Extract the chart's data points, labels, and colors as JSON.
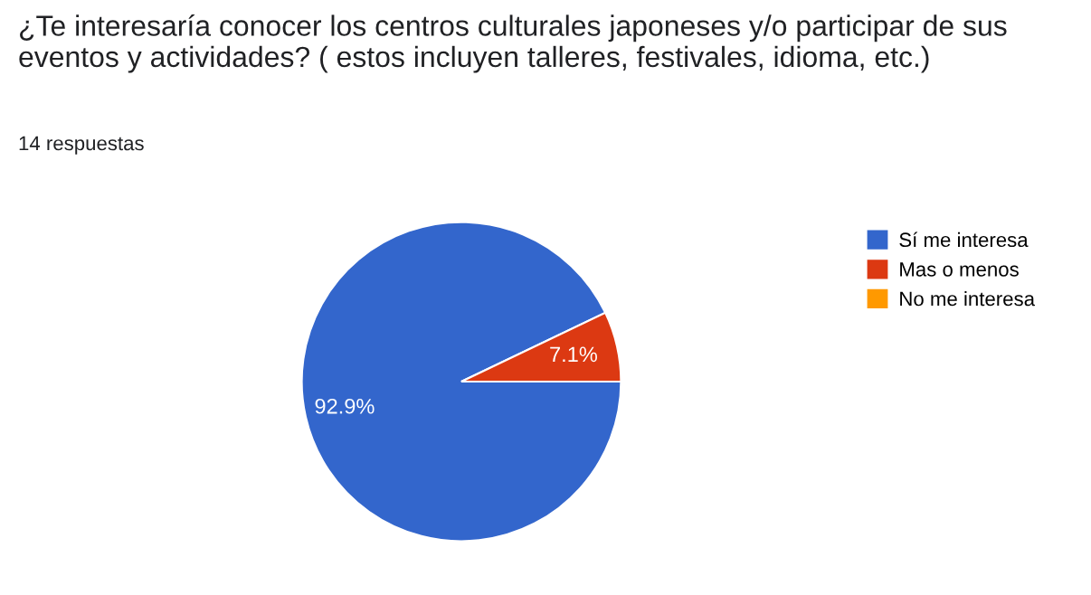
{
  "chart_data": {
    "type": "pie",
    "title": "¿Te interesaría conocer los centros culturales japoneses y/o participar de sus eventos y actividades? ( estos incluyen talleres, festivales, idioma, etc.)",
    "subtitle": "14 respuestas",
    "categories": [
      "Sí me interesa",
      "Mas o menos",
      "No me interesa"
    ],
    "values": [
      92.9,
      7.1,
      0
    ],
    "colors": [
      "#3366cc",
      "#dc3912",
      "#ff9900"
    ],
    "value_labels": [
      "92.9%",
      "7.1%",
      null
    ],
    "legend": "right"
  }
}
